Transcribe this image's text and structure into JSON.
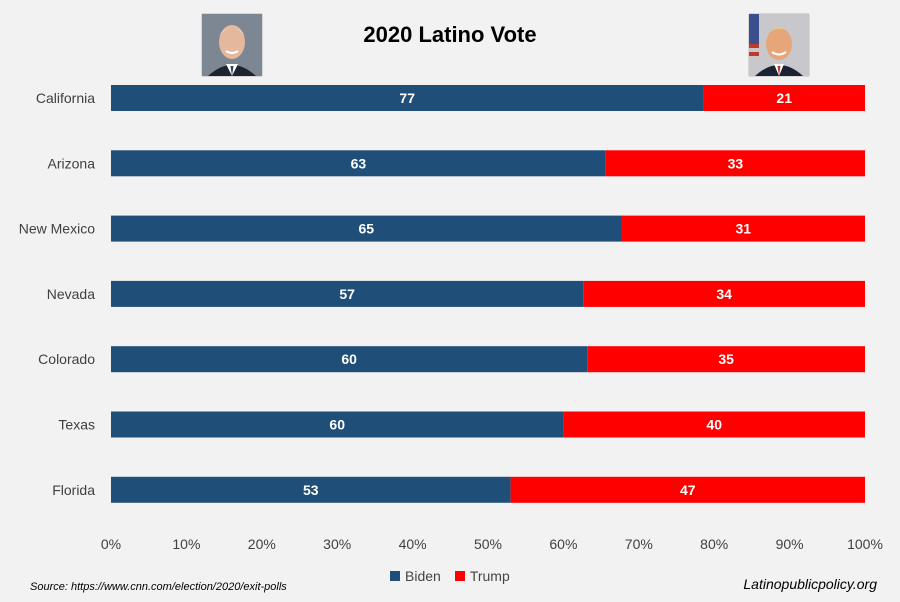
{
  "chart_data": {
    "type": "bar",
    "orientation": "horizontal",
    "stacked": true,
    "title": "2020 Latino Vote",
    "categories": [
      "California",
      "Arizona",
      "New Mexico",
      "Nevada",
      "Colorado",
      "Texas",
      "Florida"
    ],
    "series": [
      {
        "name": "Biden",
        "color": "#1f4e79",
        "values": [
          77,
          63,
          65,
          57,
          60,
          60,
          53
        ]
      },
      {
        "name": "Trump",
        "color": "#ff0000",
        "values": [
          21,
          33,
          31,
          34,
          35,
          40,
          47
        ]
      }
    ],
    "xlim": [
      0,
      100
    ],
    "x_ticks": [
      "0%",
      "10%",
      "20%",
      "30%",
      "40%",
      "50%",
      "60%",
      "70%",
      "80%",
      "90%",
      "100%"
    ],
    "normalized_to_100_percent": true,
    "grid": false,
    "legend_position": "bottom",
    "data_labels": true
  },
  "source": "Source: https://www.cnn.com/election/2020/exit-polls",
  "credit": "Latinopublicpolicy.org",
  "portraits": {
    "left": "biden-portrait",
    "right": "trump-portrait"
  }
}
